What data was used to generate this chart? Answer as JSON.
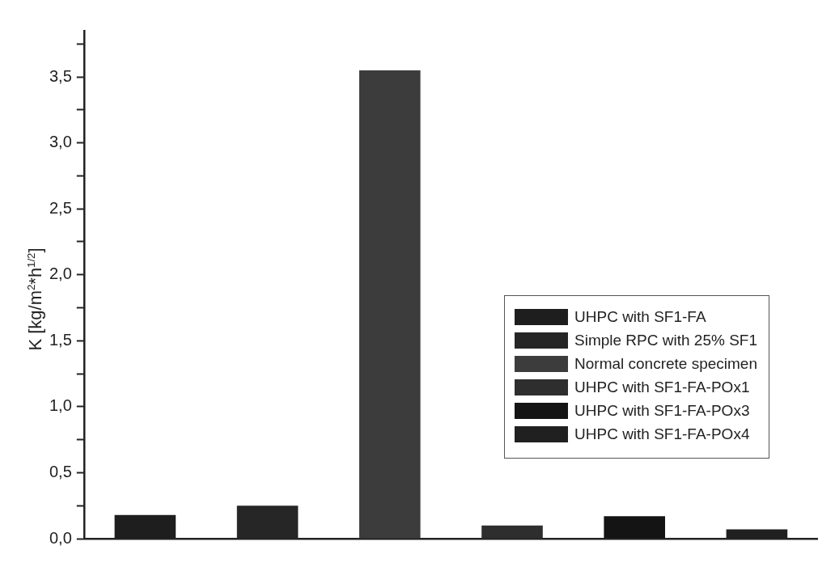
{
  "chart_data": {
    "type": "bar",
    "ylabel": "K [kg/m$^{2}$*h$^{1/2}$]",
    "categories": [
      null,
      null,
      null,
      null,
      null,
      null
    ],
    "series": [
      {
        "name": "UHPC with SF1-FA",
        "color": "#1e1e1e",
        "values": [
          0.18,
          null,
          null,
          null,
          null,
          null
        ]
      },
      {
        "name": "Simple RPC with 25% SF1",
        "color": "#262626",
        "values": [
          null,
          0.25,
          null,
          null,
          null,
          null
        ]
      },
      {
        "name": "Normal concrete specimen",
        "color": "#3c3c3c",
        "values": [
          null,
          null,
          3.55,
          null,
          null,
          null
        ]
      },
      {
        "name": "UHPC with SF1-FA-POx1",
        "color": "#2e2e2e",
        "values": [
          null,
          null,
          null,
          0.1,
          null,
          null
        ]
      },
      {
        "name": "UHPC with SF1-FA-POx3",
        "color": "#141414",
        "values": [
          null,
          null,
          null,
          null,
          0.17,
          null
        ]
      },
      {
        "name": "UHPC with SF1-FA-POx4",
        "color": "#202020",
        "values": [
          null,
          null,
          null,
          null,
          null,
          0.07
        ]
      }
    ],
    "ylim": [
      0,
      3.85
    ],
    "yticks": [
      {
        "value": 0,
        "label": "0,0"
      },
      {
        "value": 0.25,
        "label": null
      },
      {
        "value": 0.5,
        "label": "0,5"
      },
      {
        "value": 0.75,
        "label": null
      },
      {
        "value": 1,
        "label": "1,0"
      },
      {
        "value": 1.25,
        "label": null
      },
      {
        "value": 1.5,
        "label": "1,5"
      },
      {
        "value": 1.75,
        "label": null
      },
      {
        "value": 2,
        "label": "2,0"
      },
      {
        "value": 2.25,
        "label": null
      },
      {
        "value": 2.5,
        "label": "2,5"
      },
      {
        "value": 2.75,
        "label": null
      },
      {
        "value": 3,
        "label": "3,0"
      },
      {
        "value": 3.25,
        "label": null
      },
      {
        "value": 3.5,
        "label": "3,5"
      },
      {
        "value": 3.75,
        "label": null
      }
    ],
    "legend": "right"
  }
}
